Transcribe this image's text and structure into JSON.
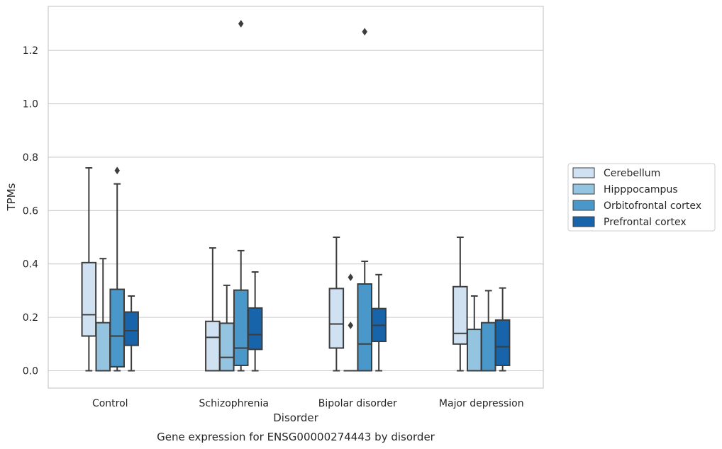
{
  "chart_data": {
    "type": "box",
    "title": "Gene expression for ENSG00000274443 by disorder",
    "xlabel": "Disorder",
    "ylabel": "TPMs",
    "ylim": [
      -0.065,
      1.365
    ],
    "yticks": [
      0.0,
      0.2,
      0.4,
      0.6,
      0.8,
      1.0,
      1.2
    ],
    "ytick_labels": [
      "0.0",
      "0.2",
      "0.4",
      "0.6",
      "0.8",
      "1.0",
      "1.2"
    ],
    "grid": true,
    "legend_position": "right",
    "categories": [
      "Control",
      "Schizophrenia",
      "Bipolar disorder",
      "Major depression"
    ],
    "series": [
      {
        "name": "Cerebellum",
        "color": "#d0e1f2",
        "boxes": [
          {
            "whislo": 0.0,
            "q1": 0.13,
            "med": 0.21,
            "q3": 0.405,
            "whishi": 0.76,
            "fliers": []
          },
          {
            "whislo": 0.0,
            "q1": 0.0,
            "med": 0.125,
            "q3": 0.185,
            "whishi": 0.46,
            "fliers": []
          },
          {
            "whislo": 0.0,
            "q1": 0.085,
            "med": 0.175,
            "q3": 0.308,
            "whishi": 0.5,
            "fliers": []
          },
          {
            "whislo": 0.0,
            "q1": 0.1,
            "med": 0.14,
            "q3": 0.315,
            "whishi": 0.5,
            "fliers": []
          }
        ]
      },
      {
        "name": "Hipppocampus",
        "color": "#94c4df",
        "boxes": [
          {
            "whislo": 0.0,
            "q1": 0.0,
            "med": 0.0,
            "q3": 0.18,
            "whishi": 0.42,
            "fliers": []
          },
          {
            "whislo": 0.0,
            "q1": 0.0,
            "med": 0.05,
            "q3": 0.178,
            "whishi": 0.32,
            "fliers": []
          },
          {
            "whislo": 0.0,
            "q1": 0.0,
            "med": 0.0,
            "q3": 0.0,
            "whishi": 0.0,
            "fliers": [
              0.35,
              0.17
            ]
          },
          {
            "whislo": 0.0,
            "q1": 0.0,
            "med": 0.0,
            "q3": 0.155,
            "whishi": 0.28,
            "fliers": []
          }
        ]
      },
      {
        "name": "Orbitofrontal cortex",
        "color": "#4a98c9",
        "boxes": [
          {
            "whislo": 0.0,
            "q1": 0.015,
            "med": 0.13,
            "q3": 0.305,
            "whishi": 0.7,
            "fliers": [
              0.75
            ]
          },
          {
            "whislo": 0.0,
            "q1": 0.02,
            "med": 0.085,
            "q3": 0.302,
            "whishi": 0.45,
            "fliers": [
              1.3
            ]
          },
          {
            "whislo": 0.0,
            "q1": 0.0,
            "med": 0.1,
            "q3": 0.325,
            "whishi": 0.41,
            "fliers": [
              1.27
            ]
          },
          {
            "whislo": 0.0,
            "q1": 0.0,
            "med": 0.0,
            "q3": 0.18,
            "whishi": 0.3,
            "fliers": []
          }
        ]
      },
      {
        "name": "Prefrontal cortex",
        "color": "#1764ab",
        "boxes": [
          {
            "whislo": 0.0,
            "q1": 0.095,
            "med": 0.15,
            "q3": 0.22,
            "whishi": 0.28,
            "fliers": []
          },
          {
            "whislo": 0.0,
            "q1": 0.08,
            "med": 0.135,
            "q3": 0.235,
            "whishi": 0.37,
            "fliers": []
          },
          {
            "whislo": 0.0,
            "q1": 0.11,
            "med": 0.17,
            "q3": 0.233,
            "whishi": 0.36,
            "fliers": []
          },
          {
            "whislo": 0.0,
            "q1": 0.02,
            "med": 0.09,
            "q3": 0.19,
            "whishi": 0.31,
            "fliers": []
          }
        ]
      }
    ]
  }
}
